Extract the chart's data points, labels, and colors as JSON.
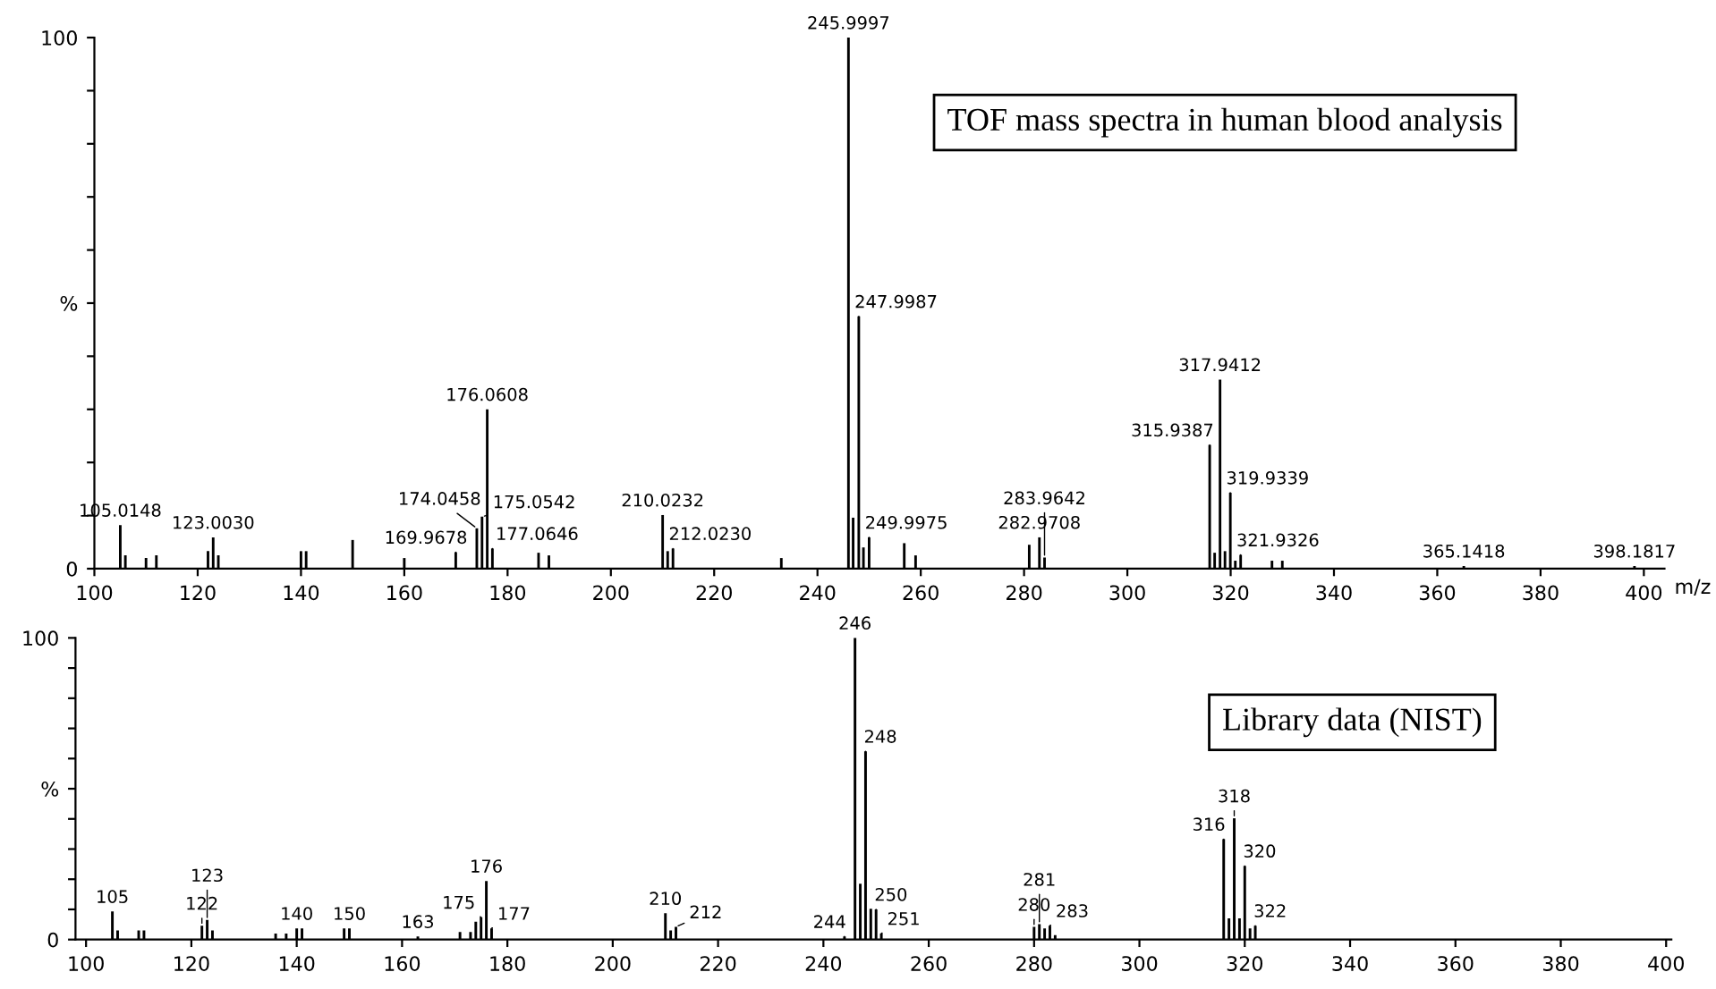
{
  "chart_data": [
    {
      "type": "bar",
      "title": "TOF mass spectra in human blood analysis",
      "xlabel": "m/z",
      "color": "#000000",
      "x": [
        105.0148,
        106,
        110,
        112,
        122,
        123.003,
        124,
        140,
        141,
        150,
        160,
        169.9678,
        174.0458,
        175.0542,
        176.0608,
        177.0646,
        186,
        188,
        210.0232,
        211,
        212.023,
        233,
        245.9997,
        246.9,
        247.9987,
        248.9,
        249.9975,
        256.8,
        259,
        281,
        282.9708,
        283.9642,
        315.9387,
        316.9,
        317.9412,
        318.9,
        319.9339,
        320.9,
        321.9326,
        328,
        330,
        365.1418,
        398.1817
      ],
      "values": [
        8.2,
        2.5,
        2,
        2.5,
        3.3,
        5.9,
        2.5,
        3.3,
        3.3,
        5.4,
        2,
        3.1,
        7.6,
        9.8,
        30.0,
        3.8,
        3,
        2.5,
        10.1,
        3.3,
        3.8,
        2,
        100,
        9.6,
        47.5,
        4,
        5.9,
        4.8,
        2.5,
        4.5,
        5.9,
        2.1,
        23.3,
        3,
        35.6,
        3.3,
        14.3,
        1.5,
        2.6,
        1.5,
        1.5,
        0.5,
        0.5
      ],
      "xlim": [
        100,
        404
      ],
      "ylim": [
        0,
        100
      ],
      "xticks": [
        100,
        120,
        140,
        160,
        180,
        200,
        220,
        240,
        260,
        280,
        300,
        320,
        340,
        360,
        380,
        400
      ],
      "yticks": [
        0,
        {
          "value": 10,
          "label": null
        },
        {
          "value": 20,
          "label": null
        },
        {
          "value": 30,
          "label": null
        },
        {
          "value": 40,
          "label": null
        },
        {
          "value": 50,
          "label": "%"
        },
        {
          "value": 60,
          "label": null
        },
        {
          "value": 70,
          "label": null
        },
        {
          "value": 80,
          "label": null
        },
        {
          "value": 90,
          "label": null
        },
        100
      ],
      "annotations": [
        {
          "text": "105.0148",
          "x": 105.0148,
          "y": 8.2
        },
        {
          "text": "123.0030",
          "x": 123.003,
          "y": 5.9
        },
        {
          "text": "169.9678",
          "x": 169.9678,
          "y": 3.1
        },
        {
          "text": "174.0458",
          "x": 174.0458,
          "y": 7.6
        },
        {
          "text": "175.0542",
          "x": 175.0542,
          "y": 9.8
        },
        {
          "text": "176.0608",
          "x": 176.0608,
          "y": 30.0
        },
        {
          "text": "177.0646",
          "x": 177.0646,
          "y": 3.8
        },
        {
          "text": "210.0232",
          "x": 210.0232,
          "y": 10.1
        },
        {
          "text": "212.0230",
          "x": 212.023,
          "y": 3.8
        },
        {
          "text": "245.9997",
          "x": 245.9997,
          "y": 100
        },
        {
          "text": "247.9987",
          "x": 247.9987,
          "y": 47.5
        },
        {
          "text": "249.9975",
          "x": 249.9975,
          "y": 5.9
        },
        {
          "text": "282.9708",
          "x": 282.9708,
          "y": 5.9
        },
        {
          "text": "283.9642",
          "x": 283.9642,
          "y": 2.1
        },
        {
          "text": "315.9387",
          "x": 315.9387,
          "y": 23.3
        },
        {
          "text": "317.9412",
          "x": 317.9412,
          "y": 35.6
        },
        {
          "text": "319.9339",
          "x": 319.9339,
          "y": 14.3
        },
        {
          "text": "321.9326",
          "x": 321.9326,
          "y": 2.6
        },
        {
          "text": "365.1418",
          "x": 365.1418,
          "y": 0.5
        },
        {
          "text": "398.1817",
          "x": 398.1817,
          "y": 0.5
        }
      ]
    },
    {
      "type": "bar",
      "title": "Library data (NIST)",
      "color": "#000000",
      "x": [
        105,
        106,
        110,
        111,
        122,
        123,
        124,
        136,
        138,
        140,
        141,
        149,
        150,
        163,
        171,
        173,
        174,
        175,
        176,
        177,
        210,
        211,
        212,
        244,
        246,
        247,
        248,
        249,
        250,
        251,
        280,
        281,
        282,
        283,
        284,
        316,
        317,
        318,
        319,
        320,
        321,
        322
      ],
      "values": [
        9.3,
        3,
        3,
        3,
        4.6,
        6.5,
        3,
        2,
        2,
        3.7,
        3.7,
        3.7,
        3.7,
        1,
        2.5,
        2.5,
        5.9,
        7.4,
        19.4,
        3.7,
        8.7,
        3,
        4.2,
        1,
        100,
        18.5,
        62.4,
        10.2,
        10,
        2,
        4.2,
        5.1,
        3.7,
        4.6,
        1.5,
        33.3,
        7,
        40.2,
        7,
        24.4,
        3.7,
        4.6
      ],
      "xlim": [
        98,
        401
      ],
      "ylim": [
        0,
        100
      ],
      "xticks": [
        100,
        120,
        140,
        160,
        180,
        200,
        220,
        240,
        260,
        280,
        300,
        320,
        340,
        360,
        380,
        400
      ],
      "yticks": [
        0,
        {
          "value": 10,
          "label": null
        },
        {
          "value": 20,
          "label": null
        },
        {
          "value": 30,
          "label": null
        },
        {
          "value": 40,
          "label": null
        },
        {
          "value": 50,
          "label": "%"
        },
        {
          "value": 60,
          "label": null
        },
        {
          "value": 70,
          "label": null
        },
        {
          "value": 80,
          "label": null
        },
        {
          "value": 90,
          "label": null
        },
        100
      ],
      "annotations": [
        {
          "text": "105",
          "x": 105,
          "y": 9.3
        },
        {
          "text": "122",
          "x": 122,
          "y": 4.6
        },
        {
          "text": "123",
          "x": 123,
          "y": 6.5
        },
        {
          "text": "140",
          "x": 140,
          "y": 3.7
        },
        {
          "text": "150",
          "x": 150,
          "y": 3.7
        },
        {
          "text": "163",
          "x": 163,
          "y": 1
        },
        {
          "text": "175",
          "x": 175,
          "y": 7.4
        },
        {
          "text": "176",
          "x": 176,
          "y": 19.4
        },
        {
          "text": "177",
          "x": 177,
          "y": 3.7
        },
        {
          "text": "210",
          "x": 210,
          "y": 8.7
        },
        {
          "text": "212",
          "x": 212,
          "y": 4.2
        },
        {
          "text": "244",
          "x": 244,
          "y": 1
        },
        {
          "text": "246",
          "x": 246,
          "y": 100
        },
        {
          "text": "248",
          "x": 248,
          "y": 62.4
        },
        {
          "text": "250",
          "x": 250,
          "y": 10
        },
        {
          "text": "251",
          "x": 251,
          "y": 2
        },
        {
          "text": "280",
          "x": 280,
          "y": 4.2
        },
        {
          "text": "281",
          "x": 281,
          "y": 5.1
        },
        {
          "text": "283",
          "x": 283,
          "y": 4.6
        },
        {
          "text": "316",
          "x": 316,
          "y": 33.3
        },
        {
          "text": "318",
          "x": 318,
          "y": 40.2
        },
        {
          "text": "320",
          "x": 320,
          "y": 24.4
        },
        {
          "text": "322",
          "x": 322,
          "y": 4.6
        }
      ]
    }
  ]
}
